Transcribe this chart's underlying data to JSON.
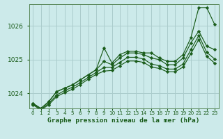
{
  "title": "Graphe pression niveau de la mer (hPa)",
  "bg_color": "#cceaea",
  "grid_color": "#aacccc",
  "line_color": "#1a5c1a",
  "marker_color": "#1a5c1a",
  "ylim": [
    1023.55,
    1026.65
  ],
  "yticks": [
    1024,
    1025,
    1026
  ],
  "series": [
    [
      1023.7,
      1023.55,
      1023.75,
      1024.05,
      1024.15,
      1024.25,
      1024.4,
      1024.55,
      1024.7,
      1025.35,
      1024.9,
      1025.15,
      1025.25,
      1025.25,
      1025.2,
      1025.2,
      1025.05,
      1024.95,
      1024.95,
      1025.15,
      1025.65,
      1026.55,
      1026.55,
      1026.05
    ],
    [
      1023.7,
      1023.55,
      1023.75,
      1024.05,
      1024.15,
      1024.25,
      1024.4,
      1024.55,
      1024.7,
      1024.95,
      1024.85,
      1025.05,
      1025.2,
      1025.2,
      1025.15,
      1025.05,
      1025.0,
      1024.85,
      1024.85,
      1025.05,
      1025.5,
      1025.85,
      1025.4,
      1025.3
    ],
    [
      1023.68,
      1023.52,
      1023.7,
      1023.95,
      1024.08,
      1024.18,
      1024.32,
      1024.47,
      1024.62,
      1024.77,
      1024.77,
      1024.92,
      1025.07,
      1025.07,
      1025.02,
      1024.87,
      1024.82,
      1024.72,
      1024.72,
      1024.87,
      1025.3,
      1025.72,
      1025.22,
      1025.02
    ],
    [
      1023.66,
      1023.5,
      1023.66,
      1023.9,
      1024.02,
      1024.12,
      1024.26,
      1024.42,
      1024.56,
      1024.66,
      1024.68,
      1024.82,
      1024.96,
      1024.96,
      1024.92,
      1024.78,
      1024.74,
      1024.64,
      1024.64,
      1024.78,
      1025.18,
      1025.6,
      1025.1,
      1024.9
    ]
  ]
}
